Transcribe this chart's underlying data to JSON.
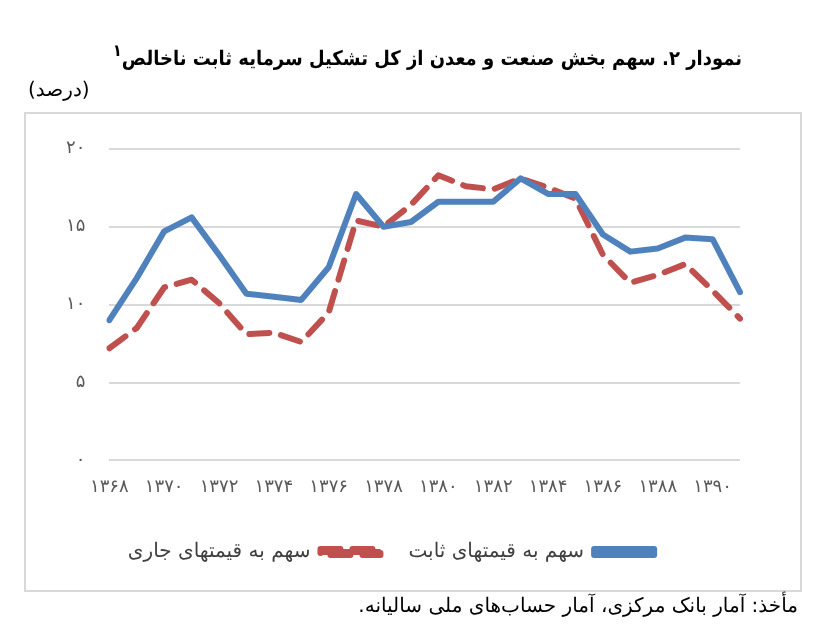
{
  "chart_data": {
    "type": "line",
    "title": "نمودار ۲. سهم بخش صنعت و معدن از کل تشکیل سرمایه ثابت ناخالص$^{۱}$",
    "ylabel": "(درصد)",
    "categories": [
      "۱۳۶۸",
      null,
      "۱۳۷۰",
      null,
      "۱۳۷۲",
      null,
      "۱۳۷۴",
      null,
      "۱۳۷۶",
      null,
      "۱۳۷۸",
      null,
      "۱۳۸۰",
      null,
      "۱۳۸۲",
      null,
      "۱۳۸۴",
      null,
      "۱۳۸۶",
      null,
      "۱۳۸۸",
      null,
      "۱۳۹۰",
      null
    ],
    "series": [
      {
        "name": "سهم به قیمتهای ثابت",
        "color": "#4f81bd",
        "line_style": "solid",
        "values": [
          9.0,
          11.7,
          14.7,
          15.6,
          13.2,
          10.7,
          10.5,
          10.3,
          12.4,
          17.1,
          15.0,
          15.3,
          16.6,
          16.6,
          16.6,
          18.1,
          17.1,
          17.1,
          14.5,
          13.4,
          13.6,
          14.3,
          14.2,
          10.8
        ]
      },
      {
        "name": "سهم به قیمتهای جاری",
        "color": "#c0504d",
        "line_style": "dashed",
        "values": [
          7.2,
          8.5,
          11.1,
          11.6,
          10.1,
          8.1,
          8.2,
          7.6,
          9.5,
          15.4,
          15.0,
          16.4,
          18.3,
          17.6,
          17.4,
          18.1,
          17.5,
          16.8,
          13.2,
          11.4,
          11.9,
          12.6,
          10.9,
          9.1
        ]
      }
    ],
    "ylim": [
      0,
      20
    ],
    "yticks": [
      {
        "value": 0,
        "label": "۰"
      },
      {
        "value": 5,
        "label": "۵"
      },
      {
        "value": 10,
        "label": "۱۰"
      },
      {
        "value": 15,
        "label": "۱۵"
      },
      {
        "value": 20,
        "label": "۲۰"
      }
    ],
    "grid": "y",
    "legend": "bottom",
    "marker": "none",
    "annotations": [
      "مأخذ: آمار بانک مرکزی، آمار حساب‌های ملی سالیانه."
    ]
  }
}
